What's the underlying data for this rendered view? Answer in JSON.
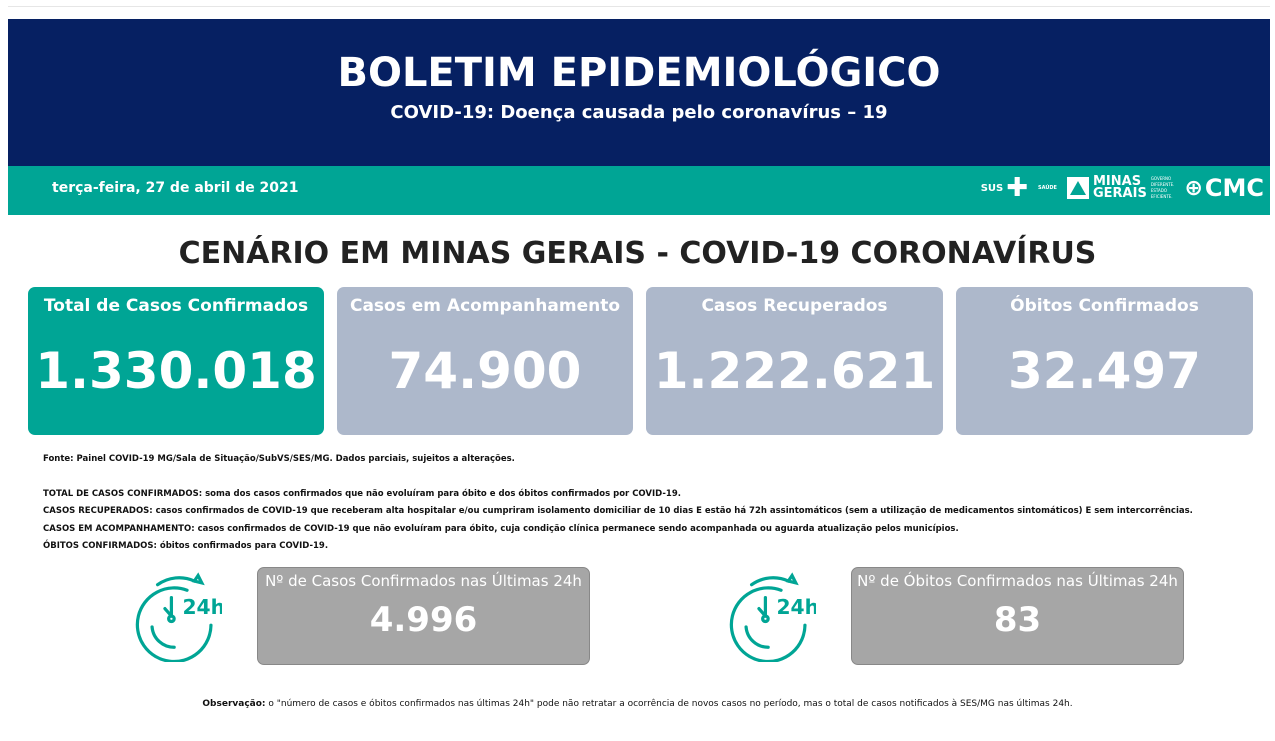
{
  "header": {
    "title": "BOLETIM EPIDEMIOLÓGICO",
    "subtitle": "COVID-19: Doença causada pelo coronavírus – 19"
  },
  "band": {
    "date": "terça-feira, 27 de abril de 2021",
    "logos": {
      "sus": "SUS",
      "saude": "SAÚDE",
      "minas": "MINAS",
      "gerais": "GERAIS",
      "tagline": [
        "GOVERNO",
        "DIFERENTE.",
        "ESTADO",
        "EFICIENTE."
      ],
      "cmc": "CMC"
    }
  },
  "section_title": "CENÁRIO EM MINAS GERAIS - COVID-19 CORONAVÍRUS",
  "cards": [
    {
      "title": "Total de Casos Confirmados",
      "value": "1.330.018"
    },
    {
      "title": "Casos em Acompanhamento",
      "value": "74.900"
    },
    {
      "title": "Casos Recuperados",
      "value": "1.222.621"
    },
    {
      "title": "Óbitos Confirmados",
      "value": "32.497"
    }
  ],
  "notes": {
    "source": "Fonte: Painel COVID-19 MG/Sala de Situação/SubVS/SES/MG. Dados parciais, sujeitos a alterações.",
    "definitions": [
      "TOTAL DE  CASOS CONFIRMADOS: soma dos casos confirmados que não evoluíram para óbito e dos óbitos confirmados por COVID-19.",
      "CASOS RECUPERADOS: casos confirmados de COVID-19 que receberam alta hospitalar e/ou cumpriram isolamento domiciliar de 10 dias E estão há 72h assintomáticos (sem a utilização de medicamentos sintomáticos) E sem intercorrências.",
      "CASOS EM ACOMPANHAMENTO: casos confirmados de COVID-19 que não evoluíram para óbito, cuja condição clínica permanece sendo acompanhada ou aguarda atualização pelos municípios.",
      "ÓBITOS CONFIRMADOS: óbitos confirmados para COVID-19."
    ]
  },
  "last24": [
    {
      "title": "Nº de Casos Confirmados nas Últimas 24h",
      "value": "4.996"
    },
    {
      "title": "Nº de Óbitos Confirmados nas Últimas 24h",
      "value": "83"
    }
  ],
  "observation": {
    "label": "Observação:",
    "text": " o \"número de casos e óbitos confirmados nas últimas 24h\" pode não retratar a ocorrência de novos casos no período, mas o total de casos notificados à SES/MG nas últimas 24h."
  },
  "colors": {
    "navy": "#062062",
    "teal": "#00a595",
    "card_grey": "#adb8cb",
    "box_grey": "#a6a6a6"
  }
}
